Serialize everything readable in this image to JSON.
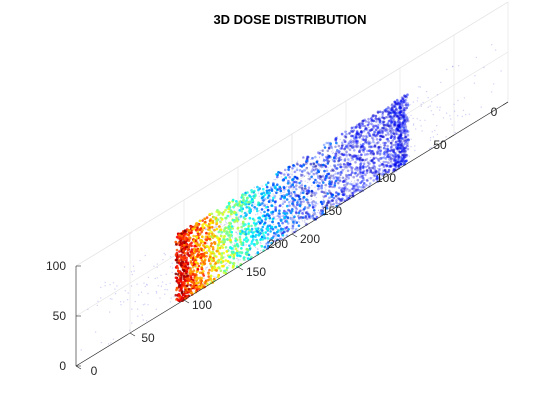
{
  "chart_data": {
    "type": "scatter",
    "projection": "3d",
    "title": "3D DOSE DISTRIBUTION",
    "xlabel": "",
    "ylabel": "",
    "zlabel": "",
    "xlim": [
      0,
      200
    ],
    "ylim": [
      0,
      200
    ],
    "zlim": [
      0,
      100
    ],
    "x_ticks": [
      0,
      50,
      100,
      150,
      200
    ],
    "y_ticks": [
      0,
      50,
      100,
      150,
      200
    ],
    "z_ticks": [
      0,
      50,
      100
    ],
    "grid": true,
    "box": true,
    "colormap": "jet",
    "colormap_colors": [
      "#00008f",
      "#0000ff",
      "#0080ff",
      "#00ffff",
      "#80ff80",
      "#ffff00",
      "#ff8000",
      "#ff0000",
      "#800000"
    ],
    "background_color": "#ffffff",
    "grid_color": "#e3e3e3",
    "axis_color": "#262626",
    "cylinder": {
      "center_x": 100,
      "center_y": 100,
      "radius": 75,
      "z_range": [
        0,
        70
      ]
    },
    "dose_gradient": "high dose on the near wall, falling off toward the far side"
  }
}
